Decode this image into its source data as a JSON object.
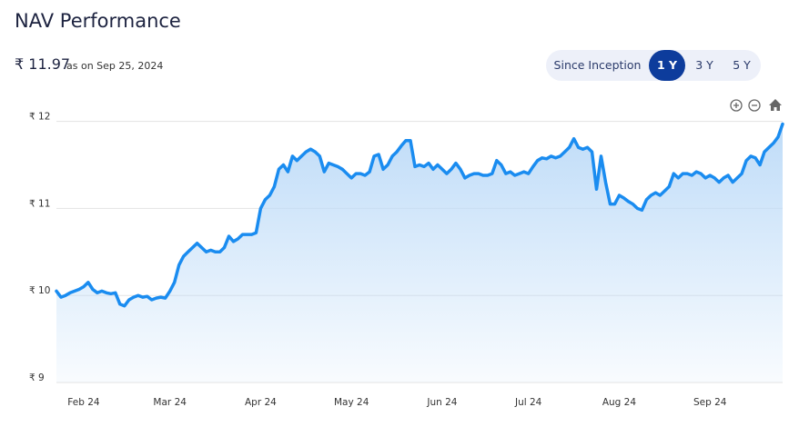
{
  "header": {
    "title": "NAV Performance",
    "nav": "₹ 11.97",
    "as_on": "as on Sep 25, 2024",
    "ranges": [
      "Since Inception",
      "1 Y",
      "3 Y",
      "5 Y"
    ]
  },
  "chart_data": {
    "type": "area",
    "color": "#1a8cf0",
    "grid": true,
    "yticks": [
      {
        "value": 9,
        "label": "₹ 9"
      },
      {
        "value": 10,
        "label": "₹ 10"
      },
      {
        "value": 11,
        "label": "₹ 11"
      },
      {
        "value": 12,
        "label": "₹ 12"
      }
    ],
    "ylim": [
      9,
      12.1
    ],
    "categories": [
      null,
      null,
      null,
      null,
      null,
      null,
      "Feb 24",
      null,
      null,
      null,
      null,
      null,
      null,
      null,
      null,
      null,
      null,
      null,
      null,
      null,
      null,
      null,
      null,
      null,
      null,
      "Mar 24",
      null,
      null,
      null,
      null,
      null,
      null,
      null,
      null,
      null,
      null,
      null,
      null,
      null,
      null,
      null,
      null,
      null,
      null,
      null,
      "Apr 24",
      null,
      null,
      null,
      null,
      null,
      null,
      null,
      null,
      null,
      null,
      null,
      null,
      null,
      null,
      null,
      null,
      null,
      null,
      null,
      "May 24",
      null,
      null,
      null,
      null,
      null,
      null,
      null,
      null,
      null,
      null,
      null,
      null,
      null,
      null,
      null,
      null,
      null,
      null,
      null,
      "Jun 24",
      null,
      null,
      null,
      null,
      null,
      null,
      null,
      null,
      null,
      null,
      null,
      null,
      null,
      null,
      null,
      null,
      null,
      null,
      "Jul 24",
      null,
      null,
      null,
      null,
      null,
      null,
      null,
      null,
      null,
      null,
      null,
      null,
      null,
      null,
      null,
      null,
      null,
      null,
      null,
      "Aug 24",
      null,
      null,
      null,
      null,
      null,
      null,
      null,
      null,
      null,
      null,
      null,
      null,
      null,
      null,
      null,
      null,
      null,
      null,
      null,
      "Sep 24",
      null,
      null,
      null,
      null,
      null,
      null,
      null,
      null,
      null,
      null,
      null,
      null,
      null,
      null,
      null,
      null
    ],
    "values": [
      10.05,
      9.98,
      10.0,
      10.03,
      10.05,
      10.07,
      10.1,
      10.15,
      10.07,
      10.03,
      10.05,
      10.03,
      10.02,
      10.03,
      9.9,
      9.88,
      9.95,
      9.98,
      10.0,
      9.98,
      9.99,
      9.95,
      9.97,
      9.98,
      9.97,
      10.05,
      10.15,
      10.35,
      10.45,
      10.5,
      10.55,
      10.6,
      10.55,
      10.5,
      10.52,
      10.5,
      10.5,
      10.55,
      10.68,
      10.62,
      10.65,
      10.7,
      10.7,
      10.7,
      10.72,
      11.0,
      11.1,
      11.15,
      11.25,
      11.45,
      11.5,
      11.42,
      11.6,
      11.55,
      11.6,
      11.65,
      11.68,
      11.65,
      11.6,
      11.42,
      11.52,
      11.5,
      11.48,
      11.45,
      11.4,
      11.35,
      11.4,
      11.4,
      11.38,
      11.42,
      11.6,
      11.62,
      11.45,
      11.5,
      11.6,
      11.65,
      11.72,
      11.78,
      11.78,
      11.48,
      11.5,
      11.48,
      11.52,
      11.45,
      11.5,
      11.45,
      11.4,
      11.45,
      11.52,
      11.45,
      11.35,
      11.38,
      11.4,
      11.4,
      11.38,
      11.38,
      11.4,
      11.55,
      11.5,
      11.4,
      11.42,
      11.38,
      11.4,
      11.42,
      11.4,
      11.48,
      11.55,
      11.58,
      11.57,
      11.6,
      11.58,
      11.6,
      11.65,
      11.7,
      11.8,
      11.7,
      11.68,
      11.7,
      11.65,
      11.22,
      11.6,
      11.3,
      11.05,
      11.05,
      11.15,
      11.12,
      11.08,
      11.05,
      11.0,
      10.98,
      11.1,
      11.15,
      11.18,
      11.15,
      11.2,
      11.25,
      11.4,
      11.35,
      11.4,
      11.4,
      11.38,
      11.42,
      11.4,
      11.35,
      11.38,
      11.35,
      11.3,
      11.35,
      11.38,
      11.3,
      11.35,
      11.4,
      11.55,
      11.6,
      11.58,
      11.5,
      11.65,
      11.7,
      11.75,
      11.82,
      11.97
    ]
  }
}
